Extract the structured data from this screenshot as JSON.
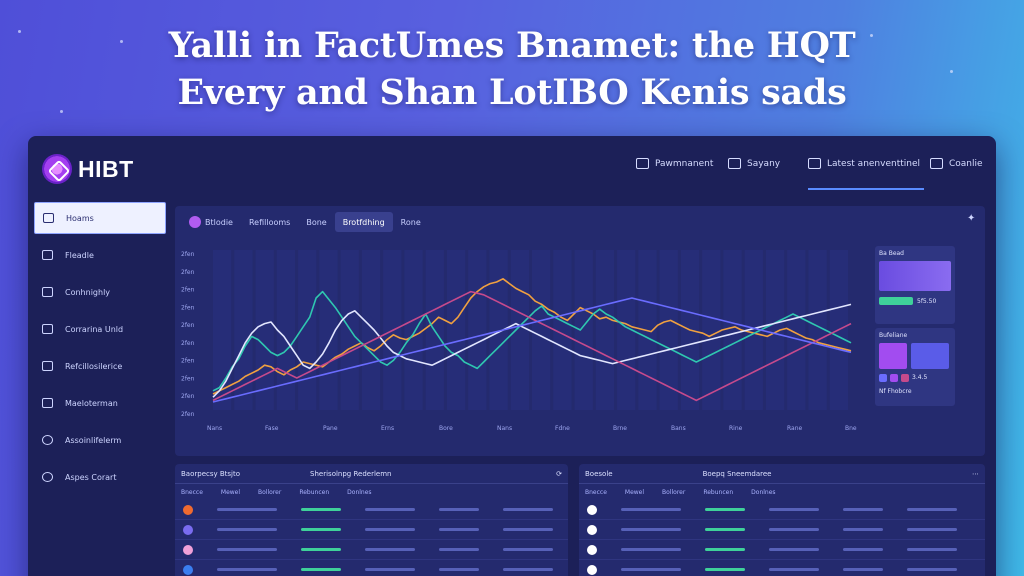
{
  "headline": {
    "line1": "Yalli in FactUmes Bnamet: the HQT",
    "line2": "Every and Shan LotIBO Kenis sads"
  },
  "app": {
    "logo_text": "HIBT",
    "nav": [
      {
        "label": "Pawmnanent",
        "icon": "document-icon"
      },
      {
        "label": "Sayany",
        "icon": "tools-icon"
      },
      {
        "label": "Latest anenventtinel",
        "icon": "calendar-icon",
        "active": true
      },
      {
        "label": "Coanlie",
        "icon": "user-icon"
      }
    ]
  },
  "sidebar": {
    "items": [
      {
        "label": "Hoams",
        "icon": "home-icon",
        "active": true
      },
      {
        "label": "Fleadle",
        "icon": "wallet-icon"
      },
      {
        "label": "Conhnighly",
        "icon": "briefcase-icon"
      },
      {
        "label": "Corrarina Unld",
        "icon": "edit-icon"
      },
      {
        "label": "Refcillosilerice",
        "icon": "monitor-icon"
      },
      {
        "label": "Maeloterman",
        "icon": "chart-icon"
      },
      {
        "label": "Assoinlifelerm",
        "icon": "key-icon"
      },
      {
        "label": "Aspes Corart",
        "icon": "info-icon"
      }
    ]
  },
  "chart_panel": {
    "tabs": [
      {
        "label": "Btlodie"
      },
      {
        "label": "Refillooms"
      },
      {
        "label": "Bone"
      },
      {
        "label": "Brotfdhing",
        "active": true
      },
      {
        "label": "Rone"
      }
    ]
  },
  "chart_data": {
    "type": "line",
    "x": [
      0,
      1,
      2,
      3,
      4,
      5,
      6,
      7,
      8,
      9,
      10,
      11,
      12,
      13,
      14,
      15,
      16,
      17,
      18,
      19,
      20,
      21,
      22,
      23,
      24,
      25,
      26,
      27,
      28,
      29,
      30,
      31,
      32,
      33,
      34,
      35,
      36,
      37,
      38,
      39,
      40,
      41,
      42,
      43,
      44,
      45,
      46,
      47,
      48,
      49,
      50,
      51,
      52,
      53,
      54,
      55,
      56,
      57,
      58,
      59,
      60,
      61,
      62,
      63,
      64,
      65,
      66,
      67,
      68,
      69,
      70,
      71,
      72,
      73,
      74,
      75,
      76,
      77,
      78,
      79,
      80,
      81,
      82,
      83,
      84,
      85,
      86,
      87,
      88,
      89,
      90,
      91,
      92,
      93,
      94,
      95,
      96,
      97,
      98,
      99
    ],
    "ylim": [
      0,
      100
    ],
    "series": [
      {
        "color": "#f0a040",
        "values": [
          10,
          12,
          14,
          16,
          18,
          21,
          23,
          25,
          28,
          27,
          24,
          22,
          25,
          27,
          30,
          29,
          28,
          27,
          30,
          33,
          35,
          38,
          40,
          42,
          39,
          37,
          40,
          44,
          47,
          45,
          44,
          46,
          48,
          51,
          54,
          58,
          56,
          54,
          58,
          64,
          70,
          74,
          77,
          79,
          80,
          82,
          79,
          76,
          74,
          72,
          68,
          66,
          63,
          61,
          58,
          56,
          60,
          64,
          62,
          60,
          57,
          58,
          56,
          55,
          54,
          52,
          51,
          50,
          49,
          53,
          55,
          56,
          54,
          52,
          50,
          49,
          48,
          46,
          48,
          50,
          51,
          52,
          50,
          49,
          48,
          47,
          46,
          48,
          50,
          51,
          49,
          47,
          45,
          44,
          42,
          41,
          40,
          39,
          38,
          37
        ]
      },
      {
        "color": "#2fc7b0",
        "values": [
          12,
          14,
          20,
          27,
          32,
          40,
          46,
          44,
          40,
          36,
          34,
          36,
          40,
          46,
          52,
          58,
          70,
          74,
          69,
          64,
          58,
          52,
          46,
          42,
          38,
          34,
          30,
          28,
          31,
          36,
          42,
          47,
          54,
          60,
          52,
          46,
          40,
          36,
          34,
          30,
          28,
          26,
          30,
          34,
          38,
          42,
          46,
          50,
          54,
          58,
          62,
          65,
          60,
          58,
          56,
          54,
          52,
          50,
          55,
          60,
          63,
          60,
          58,
          55,
          52,
          50,
          48,
          46,
          44,
          42,
          40,
          38,
          36,
          34,
          32,
          30,
          32,
          34,
          36,
          38,
          40,
          42,
          44,
          46,
          48,
          50,
          52,
          54,
          56,
          58,
          60,
          58,
          56,
          54,
          52,
          50,
          48,
          46,
          44,
          42
        ]
      },
      {
        "color": "#e2e6ff",
        "values": [
          8,
          12,
          18,
          26,
          34,
          42,
          48,
          52,
          54,
          55,
          50,
          46,
          40,
          34,
          28,
          26,
          30,
          35,
          42,
          50,
          56,
          60,
          62,
          58,
          54,
          50,
          45,
          40,
          36,
          34,
          32,
          31,
          30,
          29,
          28,
          30,
          32,
          34,
          36,
          38,
          40,
          42,
          44,
          46,
          48,
          50,
          52,
          54,
          52,
          50,
          48,
          46,
          44,
          42,
          40,
          38,
          36,
          34,
          33,
          32,
          31,
          30,
          29,
          30,
          31,
          32,
          33,
          34,
          35,
          36,
          37,
          38,
          39,
          40,
          41,
          42,
          43,
          44,
          45,
          46,
          47,
          48,
          49,
          50,
          51,
          52,
          53,
          54,
          55,
          56,
          57,
          58,
          59,
          60,
          61,
          62,
          63,
          64,
          65,
          66
        ]
      },
      {
        "color": "#c64a8c",
        "values": [
          6,
          8,
          10,
          12,
          14,
          16,
          18,
          20,
          22,
          24,
          26,
          24,
          22,
          20,
          22,
          24,
          26,
          28,
          30,
          32,
          34,
          36,
          38,
          40,
          42,
          44,
          46,
          48,
          50,
          52,
          54,
          56,
          58,
          60,
          62,
          64,
          66,
          68,
          70,
          72,
          74,
          73,
          72,
          70,
          68,
          66,
          64,
          62,
          60,
          58,
          56,
          54,
          52,
          50,
          48,
          46,
          44,
          42,
          40,
          38,
          36,
          34,
          32,
          30,
          28,
          26,
          24,
          22,
          20,
          18,
          16,
          14,
          12,
          10,
          8,
          6,
          8,
          10,
          12,
          14,
          16,
          18,
          20,
          22,
          24,
          26,
          28,
          30,
          32,
          34,
          36,
          38,
          40,
          42,
          44,
          46,
          48,
          50,
          52,
          54
        ]
      },
      {
        "color": "#6a6cff",
        "values": [
          5,
          6,
          7,
          8,
          9,
          10,
          11,
          12,
          13,
          14,
          15,
          16,
          17,
          18,
          19,
          20,
          21,
          22,
          23,
          24,
          25,
          26,
          27,
          28,
          29,
          30,
          31,
          32,
          33,
          34,
          35,
          36,
          37,
          38,
          39,
          40,
          41,
          42,
          43,
          44,
          45,
          46,
          47,
          48,
          49,
          50,
          51,
          52,
          53,
          54,
          55,
          56,
          57,
          58,
          59,
          60,
          61,
          62,
          63,
          64,
          65,
          66,
          67,
          68,
          69,
          70,
          69,
          68,
          67,
          66,
          65,
          64,
          63,
          62,
          61,
          60,
          59,
          58,
          57,
          56,
          55,
          54,
          53,
          52,
          51,
          50,
          49,
          48,
          47,
          46,
          45,
          44,
          43,
          42,
          41,
          40,
          39,
          38,
          37,
          36
        ]
      }
    ]
  },
  "x_ticks": [
    "Nans",
    "Fase",
    "Pane",
    "Erns",
    "Bore",
    "Nans",
    "Fdne",
    "Brne",
    "Bans",
    "Rine",
    "Rane",
    "Bne"
  ],
  "y_ticks": [
    "2fen",
    "2fen",
    "2fen",
    "2fen",
    "2fen",
    "2fen",
    "2fen",
    "2fen",
    "2fen",
    "2fen"
  ],
  "widgets": [
    {
      "title": "Ba Bead",
      "note": "5f5.50"
    },
    {
      "title": "Bufeliane",
      "note": "3.4.5"
    },
    {
      "title": "Nf Fhobcre",
      "note": "Sare"
    }
  ],
  "table_left": {
    "title_left": "Baorpecsy Btsjto",
    "title_mid": "Sherisolnpg Rederlemn",
    "columns": [
      "Bnecce",
      "Mewel",
      "Bollorer",
      "Rebuncen",
      "Donlnes"
    ],
    "rows": [
      {
        "coin_color": "#f06a30"
      },
      {
        "coin_color": "#7a6cf0"
      },
      {
        "coin_color": "#f0a0d8"
      },
      {
        "coin_color": "#3a7ef0"
      },
      {
        "coin_color": "#c03040"
      }
    ]
  },
  "table_right": {
    "title_left": "Boesole",
    "title_mid": "Boepq Sneemdaree",
    "columns": [
      "Bnecce",
      "Mewel",
      "Bollorer",
      "Rebuncen",
      "Donlnes"
    ],
    "rows": [
      {
        "coin_color": "#ffffff"
      },
      {
        "coin_color": "#ffffff"
      },
      {
        "coin_color": "#ffffff"
      },
      {
        "coin_color": "#ffffff"
      },
      {
        "coin_color": "#ffffff"
      }
    ]
  }
}
